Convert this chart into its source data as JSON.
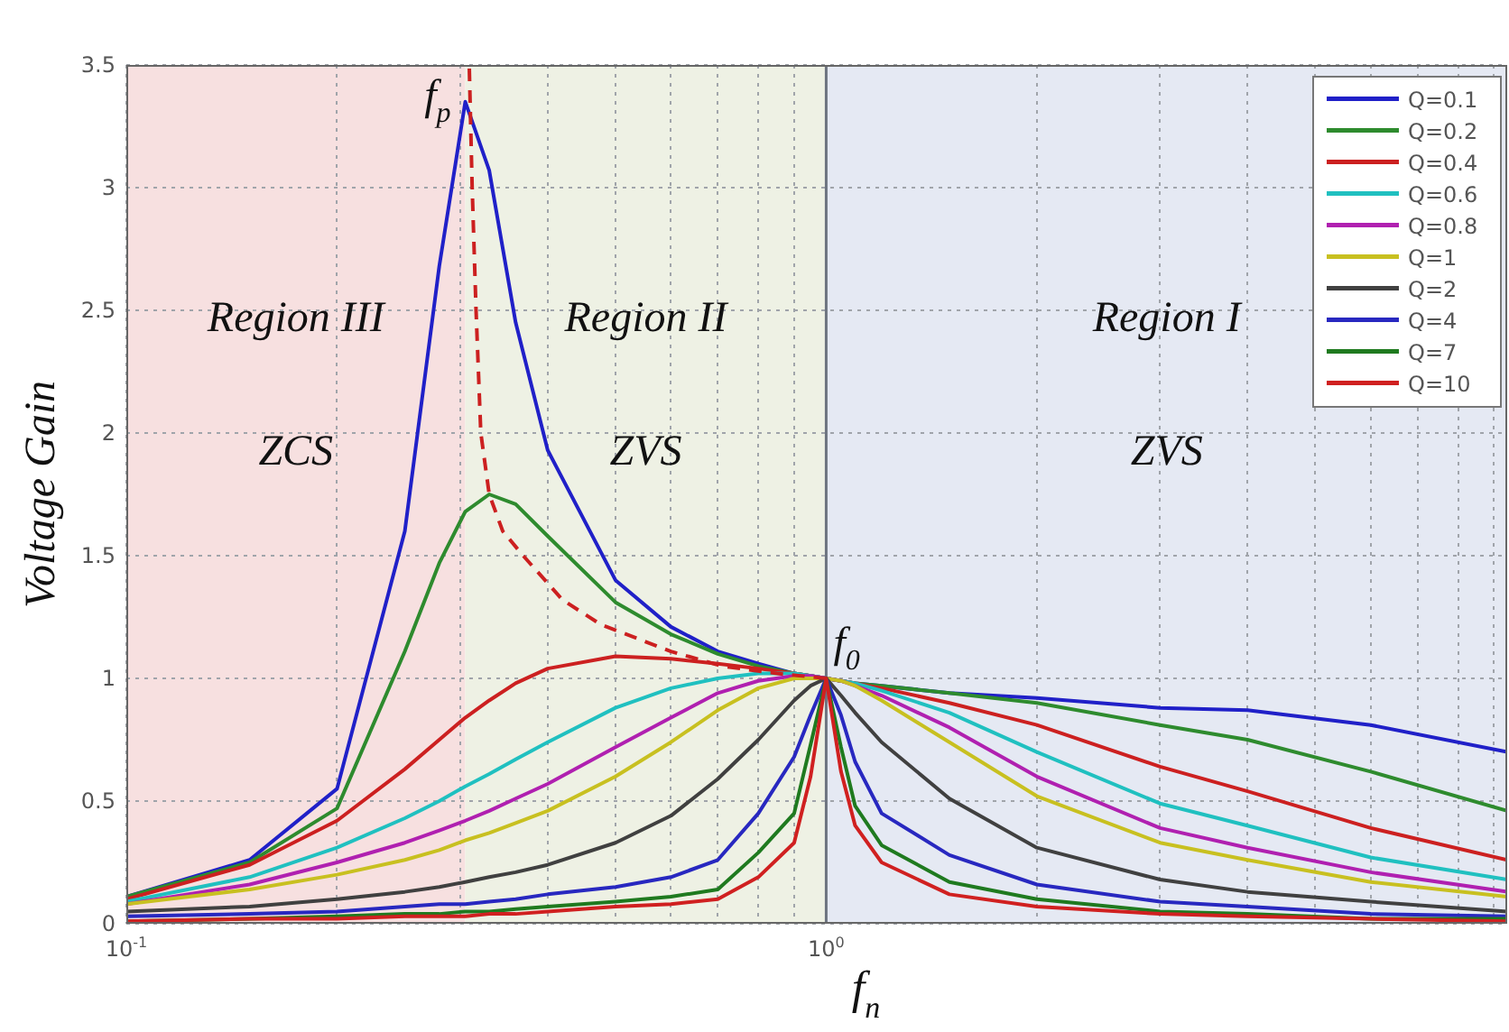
{
  "chart_data": {
    "type": "line",
    "xlabel": "f$_{n}$",
    "ylabel": "Voltage Gain",
    "x": [
      0.1,
      0.15,
      0.2,
      0.25,
      0.28,
      0.305,
      0.33,
      0.36,
      0.4,
      0.5,
      0.6,
      0.7,
      0.8,
      0.9,
      0.95,
      1,
      1.05,
      1.1,
      1.2,
      1.5,
      2,
      3,
      4,
      6,
      9.4
    ],
    "series": [
      {
        "name": "Q=0.1",
        "color": "#2020c8",
        "values": [
          0.11,
          0.26,
          0.55,
          1.6,
          2.68,
          3.35,
          3.07,
          2.45,
          1.93,
          1.4,
          1.21,
          1.11,
          1.06,
          1.02,
          1.01,
          1,
          0.99,
          0.98,
          0.97,
          0.94,
          0.92,
          0.88,
          0.87,
          0.81,
          0.7
        ]
      },
      {
        "name": "Q=0.2",
        "color": "#2e8b2e",
        "values": [
          0.11,
          0.25,
          0.47,
          1.11,
          1.47,
          1.68,
          1.75,
          1.71,
          1.58,
          1.31,
          1.18,
          1.1,
          1.05,
          1.02,
          1.01,
          1,
          0.99,
          0.98,
          0.97,
          0.94,
          0.9,
          0.81,
          0.75,
          0.62,
          0.46
        ]
      },
      {
        "name": "Q=0.4",
        "color": "#cc2020",
        "values": [
          0.1,
          0.24,
          0.42,
          0.63,
          0.75,
          0.84,
          0.91,
          0.98,
          1.04,
          1.09,
          1.08,
          1.06,
          1.04,
          1.02,
          1.01,
          1,
          0.99,
          0.98,
          0.96,
          0.9,
          0.81,
          0.64,
          0.54,
          0.39,
          0.26
        ]
      },
      {
        "name": "Q=0.6",
        "color": "#20c0c0",
        "values": [
          0.09,
          0.19,
          0.31,
          0.43,
          0.5,
          0.56,
          0.61,
          0.67,
          0.74,
          0.88,
          0.96,
          1,
          1.02,
          1.02,
          1.01,
          1,
          0.99,
          0.98,
          0.95,
          0.86,
          0.7,
          0.49,
          0.4,
          0.27,
          0.18
        ]
      },
      {
        "name": "Q=0.8",
        "color": "#b020b0",
        "values": [
          0.08,
          0.16,
          0.25,
          0.33,
          0.38,
          0.42,
          0.46,
          0.51,
          0.57,
          0.72,
          0.84,
          0.94,
          0.99,
          1.01,
          1.01,
          1,
          0.99,
          0.97,
          0.93,
          0.8,
          0.6,
          0.39,
          0.31,
          0.21,
          0.13
        ]
      },
      {
        "name": "Q=1",
        "color": "#c8c020",
        "values": [
          0.08,
          0.14,
          0.2,
          0.26,
          0.3,
          0.34,
          0.37,
          0.41,
          0.46,
          0.6,
          0.74,
          0.87,
          0.96,
          1,
          1,
          1,
          0.99,
          0.97,
          0.91,
          0.74,
          0.52,
          0.33,
          0.26,
          0.17,
          0.11
        ]
      },
      {
        "name": "Q=2",
        "color": "#404040",
        "values": [
          0.05,
          0.07,
          0.1,
          0.13,
          0.15,
          0.17,
          0.19,
          0.21,
          0.24,
          0.33,
          0.44,
          0.59,
          0.75,
          0.91,
          0.97,
          1,
          0.93,
          0.86,
          0.74,
          0.51,
          0.31,
          0.18,
          0.13,
          0.09,
          0.05
        ]
      },
      {
        "name": "Q=4",
        "color": "#2828c0",
        "values": [
          0.03,
          0.04,
          0.05,
          0.07,
          0.08,
          0.08,
          0.09,
          0.1,
          0.12,
          0.15,
          0.19,
          0.26,
          0.45,
          0.68,
          0.85,
          1,
          0.85,
          0.66,
          0.45,
          0.28,
          0.16,
          0.09,
          0.07,
          0.04,
          0.03
        ]
      },
      {
        "name": "Q=7",
        "color": "#1f7a1f",
        "values": [
          0.01,
          0.02,
          0.03,
          0.04,
          0.04,
          0.05,
          0.05,
          0.06,
          0.07,
          0.09,
          0.11,
          0.14,
          0.29,
          0.45,
          0.73,
          1,
          0.72,
          0.48,
          0.32,
          0.17,
          0.1,
          0.05,
          0.04,
          0.02,
          0.02
        ]
      },
      {
        "name": "Q=10",
        "color": "#d02020",
        "values": [
          0.01,
          0.02,
          0.02,
          0.03,
          0.03,
          0.03,
          0.04,
          0.04,
          0.05,
          0.07,
          0.08,
          0.1,
          0.19,
          0.33,
          0.6,
          1,
          0.62,
          0.4,
          0.25,
          0.12,
          0.07,
          0.04,
          0.03,
          0.02,
          0.01
        ]
      },
      {
        "color": "#cc2020",
        "line_style": "dashed",
        "x": [
          1,
          0.85,
          0.71,
          0.6,
          0.476,
          0.42,
          0.369,
          0.345,
          0.33,
          0.321,
          0.316,
          0.312,
          0.309
        ],
        "values": [
          1,
          1.02,
          1.05,
          1.11,
          1.22,
          1.32,
          1.5,
          1.6,
          1.75,
          2.0,
          2.5,
          3.0,
          3.5
        ]
      }
    ],
    "bands": [
      {
        "axis": "x",
        "from": 0.1,
        "to": 0.305,
        "label": "Region III",
        "color": "#f7e0e0"
      },
      {
        "axis": "x",
        "from": 0.305,
        "to": 1,
        "label": "Region II",
        "color": "#eef1e4"
      },
      {
        "axis": "x",
        "from": 1,
        "to": 9.4,
        "label": "Region I",
        "color": "#e5e9f3"
      }
    ],
    "ref_lines": [
      {
        "axis": "x",
        "value": 1,
        "color": "#6d7480"
      }
    ],
    "annotations": [
      "ZCS",
      "ZVS",
      "ZVS",
      {
        "text": "f$_{p}$",
        "x": 0.305,
        "y": 3.35
      },
      {
        "text": "f$_{0}$",
        "x": 1,
        "y": 1
      }
    ],
    "xlim": [
      0.1,
      9.4
    ],
    "xticks": [
      {
        "value": 0.1,
        "label": "10$^{-1}$"
      },
      {
        "value": 0.2,
        "label": null
      },
      {
        "value": 0.3,
        "label": null
      },
      {
        "value": 0.4,
        "label": null
      },
      {
        "value": 0.5,
        "label": null
      },
      {
        "value": 0.6,
        "label": null
      },
      {
        "value": 0.7,
        "label": null
      },
      {
        "value": 0.8,
        "label": null
      },
      {
        "value": 0.9,
        "label": null
      },
      {
        "value": 1,
        "label": "10$^{0}$"
      },
      {
        "value": 2,
        "label": null
      },
      {
        "value": 3,
        "label": null
      },
      {
        "value": 4,
        "label": null
      },
      {
        "value": 5,
        "label": null
      },
      {
        "value": 6,
        "label": null
      },
      {
        "value": 7,
        "label": null
      },
      {
        "value": 8,
        "label": null
      },
      {
        "value": 9,
        "label": null
      }
    ],
    "ylim": [
      0,
      3.5
    ],
    "yticks": [
      0,
      0.5,
      1,
      1.5,
      2,
      2.5,
      3,
      3.5
    ],
    "log": "x",
    "grid": true,
    "legend": "top right",
    "marker": "none",
    "line_style": "solid"
  }
}
